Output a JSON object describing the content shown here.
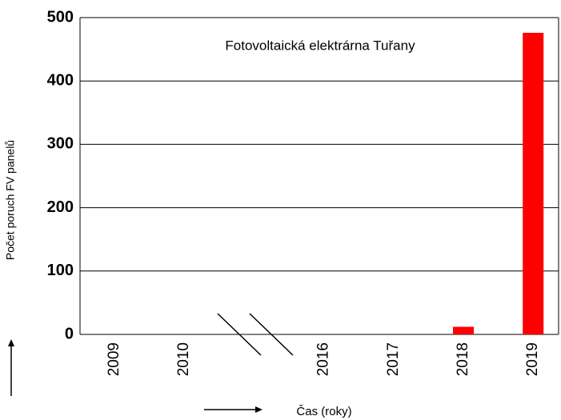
{
  "chart_data": {
    "type": "bar",
    "title": "Fotovoltaická elektrárna Tuřany",
    "y_label": "Počet poruch FV panelů",
    "x_label": "Čas (roky)",
    "categories": [
      "2009",
      "2010",
      null,
      "2016",
      "2017",
      "2018",
      "2019"
    ],
    "values": [
      0,
      0,
      null,
      0,
      0,
      12,
      476
    ],
    "color": "#ff0000",
    "ylim": [
      0,
      500
    ],
    "yticks": [
      0,
      100,
      200,
      300,
      400,
      500
    ],
    "grid": true
  }
}
